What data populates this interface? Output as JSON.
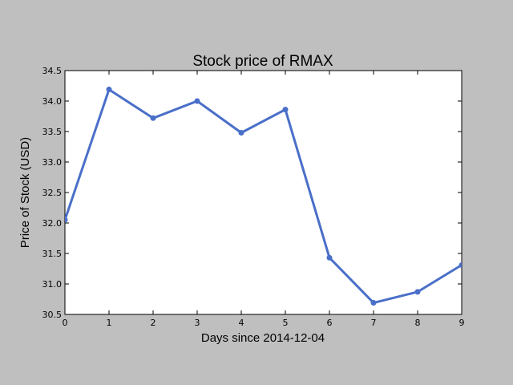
{
  "chart_data": {
    "type": "line",
    "title": "Stock price of RMAX",
    "xlabel": "Days since 2014-12-04",
    "ylabel": "Price of Stock (USD)",
    "x": [
      0,
      1,
      2,
      3,
      4,
      5,
      6,
      7,
      8,
      9
    ],
    "series": [
      {
        "values": [
          32.05,
          34.19,
          33.72,
          34.0,
          33.48,
          33.86,
          31.43,
          30.69,
          30.87,
          31.31
        ]
      }
    ],
    "xlim": [
      0,
      9
    ],
    "ylim": [
      30.5,
      34.5
    ],
    "xticks": [
      "0",
      "1",
      "2",
      "3",
      "4",
      "5",
      "6",
      "7",
      "8",
      "9"
    ],
    "yticks": [
      "30.5",
      "31.0",
      "31.5",
      "32.0",
      "32.5",
      "33.0",
      "33.5",
      "34.0",
      "34.5"
    ],
    "grid": false,
    "line_color": "#4a6fc9",
    "plot_background": "#ffffff",
    "figure_background": "#bfbfbf"
  }
}
